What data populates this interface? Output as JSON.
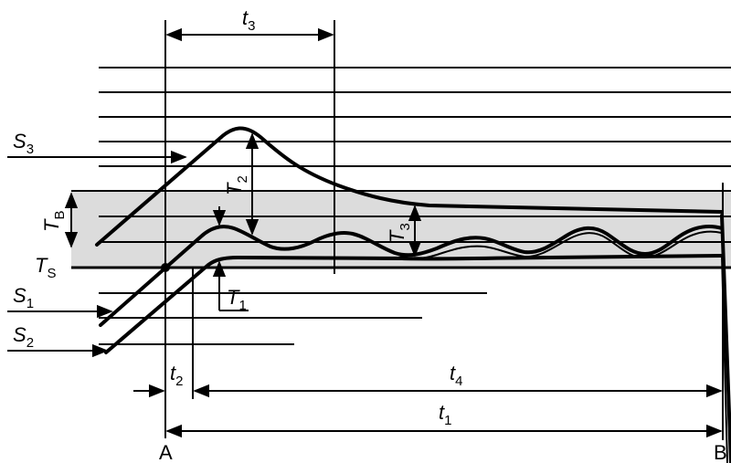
{
  "labels": {
    "s3": {
      "main": "S",
      "sub": "3"
    },
    "s1": {
      "main": "S",
      "sub": "1"
    },
    "s2": {
      "main": "S",
      "sub": "2"
    },
    "tb": {
      "main": "T",
      "sub": "B"
    },
    "ts": {
      "main": "T",
      "sub": "S"
    },
    "t_cap1": {
      "main": "T",
      "sub": "1"
    },
    "t_cap2": {
      "main": "T",
      "sub": "2"
    },
    "t_cap3": {
      "main": "T",
      "sub": "3"
    },
    "t1": {
      "main": "t",
      "sub": "1"
    },
    "t2": {
      "main": "t",
      "sub": "2"
    },
    "t3": {
      "main": "t",
      "sub": "3"
    },
    "t4": {
      "main": "t",
      "sub": "4"
    },
    "a": "A",
    "b": "B"
  },
  "colors": {
    "band_fill": "#dcdcdc",
    "ink": "#000000",
    "background": "#ffffff"
  }
}
